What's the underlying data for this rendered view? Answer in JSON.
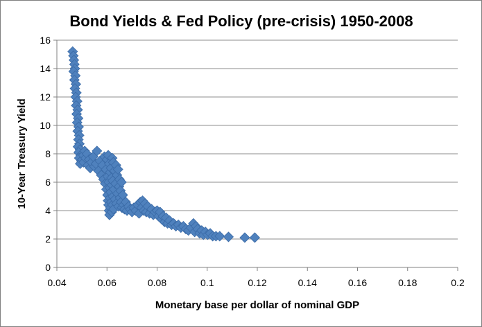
{
  "chart_data": {
    "type": "scatter",
    "title": "Bond Yields & Fed Policy (pre-crisis) 1950-2008",
    "xlabel": "Monetary base per dollar of nominal GDP",
    "ylabel": "10-Year Treasury Yield",
    "xlim": [
      0.04,
      0.2
    ],
    "ylim": [
      0,
      16
    ],
    "x_ticks": [
      0.04,
      0.06,
      0.08,
      0.1,
      0.12,
      0.14,
      0.16,
      0.18,
      0.2
    ],
    "x_tick_labels": [
      "0.04",
      "0.06",
      "0.08",
      "0.1",
      "0.12",
      "0.14",
      "0.16",
      "0.18",
      "0.2"
    ],
    "y_ticks": [
      0,
      2,
      4,
      6,
      8,
      10,
      12,
      14,
      16
    ],
    "y_tick_labels": [
      "0",
      "2",
      "4",
      "6",
      "8",
      "10",
      "12",
      "14",
      "16"
    ],
    "grid": "horizontal",
    "legend": "none",
    "marker": "diamond",
    "color": "#4f81bd",
    "points": [
      [
        0.0463,
        15.2
      ],
      [
        0.0466,
        14.9
      ],
      [
        0.0468,
        14.6
      ],
      [
        0.047,
        14.3
      ],
      [
        0.0472,
        14.0
      ],
      [
        0.0467,
        13.8
      ],
      [
        0.0474,
        13.5
      ],
      [
        0.047,
        13.2
      ],
      [
        0.0476,
        12.9
      ],
      [
        0.0472,
        12.6
      ],
      [
        0.0478,
        12.3
      ],
      [
        0.0475,
        12.0
      ],
      [
        0.0481,
        11.7
      ],
      [
        0.0477,
        11.4
      ],
      [
        0.0483,
        11.1
      ],
      [
        0.0479,
        10.8
      ],
      [
        0.0485,
        10.5
      ],
      [
        0.0481,
        10.2
      ],
      [
        0.0487,
        9.9
      ],
      [
        0.0483,
        9.6
      ],
      [
        0.0489,
        9.3
      ],
      [
        0.0486,
        9.0
      ],
      [
        0.049,
        8.7
      ],
      [
        0.0484,
        8.5
      ],
      [
        0.0492,
        8.3
      ],
      [
        0.0487,
        8.1
      ],
      [
        0.0495,
        7.9
      ],
      [
        0.0489,
        7.7
      ],
      [
        0.0498,
        7.5
      ],
      [
        0.0493,
        7.3
      ],
      [
        0.0502,
        7.6
      ],
      [
        0.0506,
        7.9
      ],
      [
        0.0511,
        8.2
      ],
      [
        0.0507,
        7.4
      ],
      [
        0.0515,
        7.7
      ],
      [
        0.052,
        8.0
      ],
      [
        0.0524,
        7.2
      ],
      [
        0.0529,
        7.6
      ],
      [
        0.0533,
        7.0
      ],
      [
        0.0538,
        7.4
      ],
      [
        0.0545,
        7.8
      ],
      [
        0.055,
        7.1
      ],
      [
        0.0556,
        7.3
      ],
      [
        0.056,
        8.2
      ],
      [
        0.0566,
        6.8
      ],
      [
        0.0572,
        7.5
      ],
      [
        0.0577,
        6.5
      ],
      [
        0.0582,
        7.2
      ],
      [
        0.0586,
        6.2
      ],
      [
        0.059,
        7.8
      ],
      [
        0.0593,
        5.9
      ],
      [
        0.0596,
        6.9
      ],
      [
        0.0598,
        5.5
      ],
      [
        0.06,
        7.6
      ],
      [
        0.0602,
        5.1
      ],
      [
        0.0603,
        6.4
      ],
      [
        0.0604,
        4.7
      ],
      [
        0.0605,
        7.9
      ],
      [
        0.0606,
        4.4
      ],
      [
        0.0607,
        6.0
      ],
      [
        0.0608,
        4.0
      ],
      [
        0.0609,
        7.3
      ],
      [
        0.061,
        3.7
      ],
      [
        0.0611,
        5.6
      ],
      [
        0.0612,
        4.9
      ],
      [
        0.0613,
        6.7
      ],
      [
        0.0614,
        4.2
      ],
      [
        0.0615,
        5.3
      ],
      [
        0.0616,
        7.0
      ],
      [
        0.0617,
        4.6
      ],
      [
        0.0618,
        6.3
      ],
      [
        0.0619,
        3.9
      ],
      [
        0.062,
        5.8
      ],
      [
        0.0621,
        7.7
      ],
      [
        0.0622,
        4.4
      ],
      [
        0.0623,
        6.1
      ],
      [
        0.0624,
        5.0
      ],
      [
        0.0625,
        7.4
      ],
      [
        0.0626,
        4.1
      ],
      [
        0.0628,
        5.5
      ],
      [
        0.063,
        6.8
      ],
      [
        0.0632,
        4.8
      ],
      [
        0.0634,
        5.9
      ],
      [
        0.0636,
        7.2
      ],
      [
        0.0638,
        4.5
      ],
      [
        0.064,
        6.5
      ],
      [
        0.0642,
        5.2
      ],
      [
        0.0644,
        6.9
      ],
      [
        0.0646,
        4.3
      ],
      [
        0.0648,
        5.7
      ],
      [
        0.065,
        6.2
      ],
      [
        0.0652,
        4.9
      ],
      [
        0.0654,
        5.4
      ],
      [
        0.0656,
        4.6
      ],
      [
        0.0658,
        6.0
      ],
      [
        0.066,
        4.2
      ],
      [
        0.0663,
        5.1
      ],
      [
        0.0666,
        4.4
      ],
      [
        0.067,
        4.1
      ],
      [
        0.0675,
        4.6
      ],
      [
        0.068,
        4.0
      ],
      [
        0.0686,
        4.3
      ],
      [
        0.0693,
        4.1
      ],
      [
        0.07,
        3.9
      ],
      [
        0.0707,
        4.2
      ],
      [
        0.0715,
        4.0
      ],
      [
        0.0722,
        4.4
      ],
      [
        0.0728,
        3.8
      ],
      [
        0.0733,
        4.6
      ],
      [
        0.0738,
        4.2
      ],
      [
        0.0742,
        4.7
      ],
      [
        0.0747,
        4.0
      ],
      [
        0.0752,
        4.5
      ],
      [
        0.0757,
        3.9
      ],
      [
        0.0763,
        4.3
      ],
      [
        0.077,
        3.8
      ],
      [
        0.0778,
        4.1
      ],
      [
        0.0785,
        3.7
      ],
      [
        0.0792,
        3.9
      ],
      [
        0.08,
        4.0
      ],
      [
        0.0806,
        3.6
      ],
      [
        0.0812,
        3.9
      ],
      [
        0.0818,
        3.4
      ],
      [
        0.0824,
        3.6
      ],
      [
        0.083,
        3.2
      ],
      [
        0.0836,
        3.5
      ],
      [
        0.0842,
        3.1
      ],
      [
        0.085,
        3.3
      ],
      [
        0.0858,
        3.0
      ],
      [
        0.0866,
        3.1
      ],
      [
        0.0875,
        2.9
      ],
      [
        0.0885,
        3.0
      ],
      [
        0.0895,
        2.8
      ],
      [
        0.0905,
        2.9
      ],
      [
        0.0915,
        2.7
      ],
      [
        0.0925,
        2.6
      ],
      [
        0.0935,
        2.8
      ],
      [
        0.0945,
        3.1
      ],
      [
        0.095,
        2.5
      ],
      [
        0.0955,
        2.9
      ],
      [
        0.0962,
        2.7
      ],
      [
        0.097,
        2.4
      ],
      [
        0.0978,
        2.6
      ],
      [
        0.0985,
        2.3
      ],
      [
        0.0993,
        2.5
      ],
      [
        0.1002,
        2.3
      ],
      [
        0.1012,
        2.4
      ],
      [
        0.1022,
        2.2
      ],
      [
        0.1035,
        2.2
      ],
      [
        0.105,
        2.2
      ],
      [
        0.1085,
        2.15
      ],
      [
        0.115,
        2.1
      ],
      [
        0.119,
        2.1
      ]
    ]
  }
}
